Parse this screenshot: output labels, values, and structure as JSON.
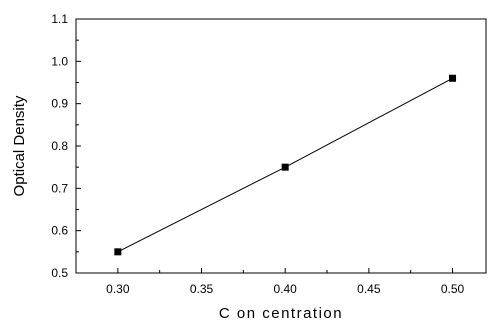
{
  "chart_data": {
    "type": "line",
    "xlabel": "C on centration",
    "ylabel": "Optical Density",
    "xlim": [
      0.275,
      0.52
    ],
    "ylim": [
      0.5,
      1.1
    ],
    "x_ticks": [
      "0.30",
      "0.35",
      "0.40",
      "0.45",
      "0.50"
    ],
    "y_ticks": [
      "0.5",
      "0.6",
      "0.7",
      "0.8",
      "0.9",
      "1.0",
      "1.1"
    ],
    "grid": false,
    "legend": "none",
    "series": [
      {
        "color": "#000000",
        "marker": "square",
        "x": [
          0.3,
          0.4,
          0.5
        ],
        "y": [
          0.55,
          0.75,
          0.96
        ]
      }
    ]
  }
}
